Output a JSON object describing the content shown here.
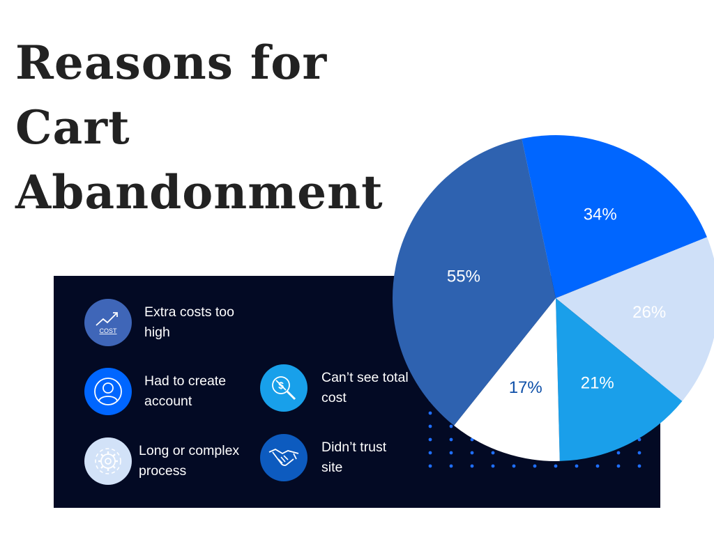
{
  "title_lines": [
    "Reasons for",
    "Cart",
    "Abandonment"
  ],
  "legend": [
    {
      "label": "Extra costs too\nhigh",
      "icon": "cost-trend-icon",
      "color": "#3f66b8"
    },
    {
      "label": "Had to create\naccount",
      "icon": "user-account-icon",
      "color": "#0066ff"
    },
    {
      "label": "Long or complex\nprocess",
      "icon": "gear-process-icon",
      "color": "#d2e2f8"
    },
    {
      "label": "Can’t see total\ncost",
      "icon": "hidden-cost-search-icon",
      "color": "#18a0ea"
    },
    {
      "label": "Didn’t trust\nsite",
      "icon": "handshake-icon",
      "color": "#0d5bbf"
    }
  ],
  "cost_icon_text": "COST",
  "chart_data": {
    "type": "pie",
    "slices": [
      {
        "value": 34,
        "label": "34%",
        "color": "#0066ff",
        "label_color": "#ffffff"
      },
      {
        "value": 26,
        "label": "26%",
        "color": "#cfe0f8",
        "label_color": "#ffffff"
      },
      {
        "value": 21,
        "label": "21%",
        "color": "#1a9fea",
        "label_color": "#ffffff"
      },
      {
        "value": 17,
        "label": "17%",
        "color": "#ffffff",
        "label_color": "#0d4fa8"
      },
      {
        "value": 55,
        "label": "55%",
        "color": "#2e62b0",
        "label_color": "#ffffff"
      }
    ]
  }
}
